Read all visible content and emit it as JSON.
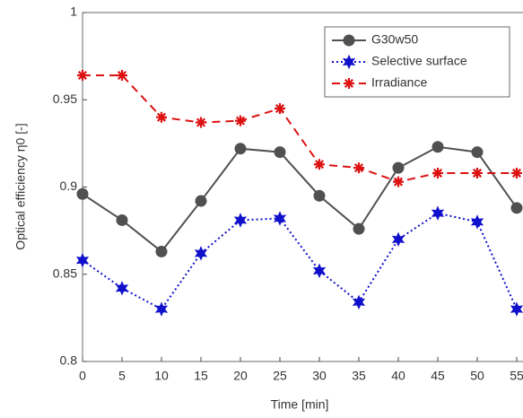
{
  "chart_data": {
    "type": "line",
    "xlabel": "Time [min]",
    "ylabel": "Optical efficiency η0 [-]",
    "x": [
      0,
      5,
      10,
      15,
      20,
      25,
      30,
      35,
      40,
      45,
      50,
      55
    ],
    "series": [
      {
        "name": "G30w50",
        "color": "#505050",
        "marker": "circle",
        "dash": "solid",
        "values": [
          0.896,
          0.881,
          0.863,
          0.892,
          0.922,
          0.92,
          0.895,
          0.876,
          0.911,
          0.923,
          0.92,
          0.888
        ]
      },
      {
        "name": "Selective surface",
        "color": "#1010cc",
        "marker": "star",
        "dash": "dotted",
        "values": [
          0.858,
          0.842,
          0.83,
          0.862,
          0.881,
          0.882,
          0.852,
          0.834,
          0.87,
          0.885,
          0.88,
          0.83
        ]
      },
      {
        "name": "Irradiance",
        "color": "#dd1111",
        "marker": "asterisk",
        "dash": "dashed",
        "values": [
          0.964,
          0.964,
          0.94,
          0.937,
          0.938,
          0.945,
          0.913,
          0.911,
          0.903,
          0.908,
          0.908,
          0.908
        ]
      }
    ],
    "xlim": [
      0,
      55
    ],
    "xticks": [
      0,
      5,
      10,
      15,
      20,
      25,
      30,
      35,
      40,
      45,
      50,
      55
    ],
    "ylim": [
      0.8,
      1
    ],
    "yticks": [
      0.8,
      0.85,
      0.9,
      0.95,
      1
    ],
    "legend": "upper right"
  }
}
